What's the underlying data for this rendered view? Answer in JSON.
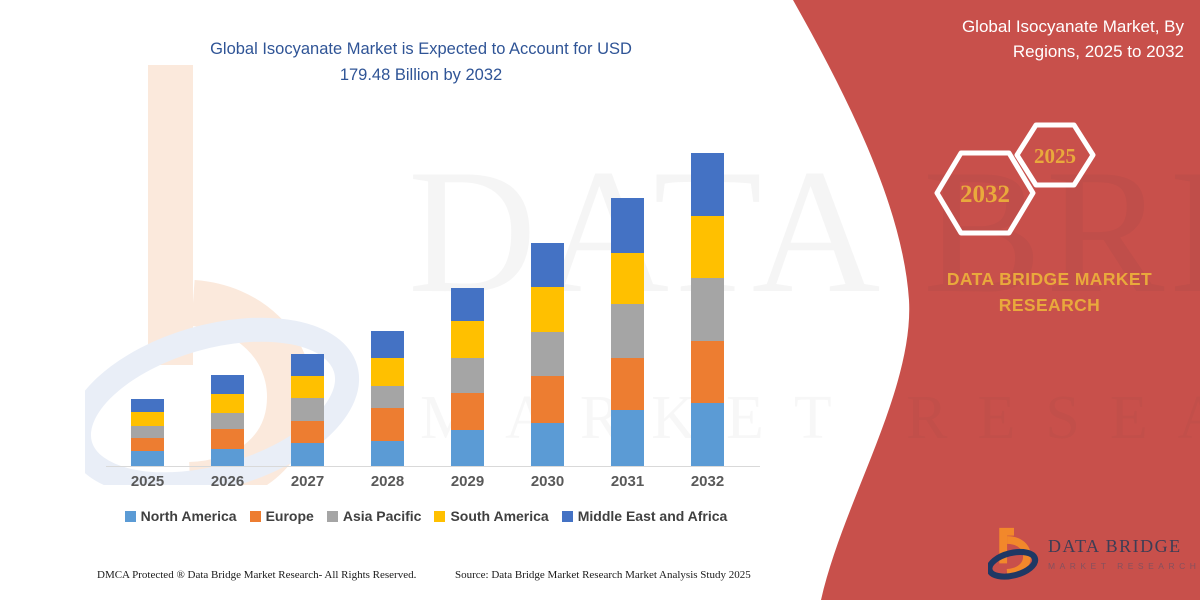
{
  "header": {
    "title_line1": "Global Isocyanate Market is Expected to Account for USD",
    "title_line2": "179.48 Billion by 2032",
    "title_color": "#2F5496"
  },
  "side_panel": {
    "title_line1": "Global Isocyanate Market, By",
    "title_line2": "Regions, 2025 to 2032",
    "hexagons": {
      "large_year": "2032",
      "small_year": "2025"
    },
    "brand_line1": "DATA BRIDGE MARKET",
    "brand_line2": "RESEARCH",
    "panel_color": "#C8504B",
    "gold_color": "#E9A93C"
  },
  "watermark": {
    "line1": "DATA BRI",
    "line2": "MARKET RESEARCH"
  },
  "chart_data": {
    "type": "bar",
    "stacked": true,
    "title": "Global Isocyanate Market is Expected to Account for USD 179.48 Billion by 2032",
    "unit": "USD Billion",
    "categories": [
      "2025",
      "2026",
      "2027",
      "2028",
      "2029",
      "2030",
      "2031",
      "2032"
    ],
    "series": [
      {
        "name": "North America",
        "color": "#5B9BD5",
        "values": [
          8.8,
          9.6,
          13.4,
          14.4,
          20.7,
          24.9,
          32.1,
          36.0
        ]
      },
      {
        "name": "Europe",
        "color": "#ED7D31",
        "values": [
          7.5,
          11.5,
          12.5,
          18.8,
          21.4,
          26.8,
          29.7,
          35.9
        ]
      },
      {
        "name": "Asia Pacific",
        "color": "#A5A5A5",
        "values": [
          6.9,
          9.2,
          13.4,
          12.5,
          19.7,
          25.4,
          31.0,
          36.2
        ]
      },
      {
        "name": "South America",
        "color": "#FFC000",
        "values": [
          7.5,
          11.3,
          12.1,
          16.2,
          21.4,
          25.8,
          29.6,
          35.4
        ]
      },
      {
        "name": "Middle East and Africa",
        "color": "#4472C4",
        "values": [
          7.9,
          10.5,
          12.8,
          15.7,
          19.1,
          24.9,
          31.2,
          36.0
        ]
      }
    ],
    "total_2032_usd_billion": 179.48,
    "y_axis_visible": false,
    "gridlines": false,
    "legend_position": "bottom",
    "values_are_estimates_scaled_to_2032_total": true
  },
  "footer": {
    "left": "DMCA Protected ® Data Bridge Market Research-  All Rights Reserved.",
    "right": "Source: Data Bridge Market Research  Market Analysis Study 2025"
  },
  "logo": {
    "title": "DATA BRIDGE",
    "subtitle": "MARKET RESEARCH"
  }
}
